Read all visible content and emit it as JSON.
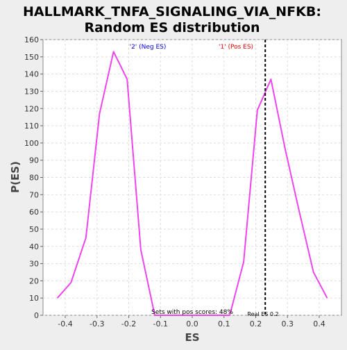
{
  "chart_data": {
    "type": "line",
    "title_line1": "HALLMARK_TNFA_SIGNALING_VIA_NFKB:",
    "title_line2": "Random ES distribution",
    "xlabel": "ES",
    "ylabel": "P(ES)",
    "xlim": [
      -0.47,
      0.47
    ],
    "ylim": [
      0,
      160
    ],
    "x_ticks": [
      -0.4,
      -0.3,
      -0.2,
      -0.1,
      0.0,
      0.1,
      0.2,
      0.3,
      0.4
    ],
    "x_tick_labels": [
      "-0.4",
      "-0.3",
      "-0.2",
      "-0.1",
      "0.0",
      "0.1",
      "0.2",
      "0.3",
      "0.4"
    ],
    "y_ticks": [
      0,
      10,
      20,
      30,
      40,
      50,
      60,
      70,
      80,
      90,
      100,
      110,
      120,
      130,
      140,
      150,
      160
    ],
    "grid": true,
    "series": [
      {
        "color": "#ee44ee",
        "x": [
          -0.425,
          -0.382,
          -0.335,
          -0.292,
          -0.248,
          -0.205,
          -0.162,
          -0.118,
          0.0,
          0.118,
          0.162,
          0.205,
          0.248,
          0.292,
          0.335,
          0.382,
          0.425
        ],
        "y": [
          10,
          19,
          45,
          117,
          153,
          137,
          38,
          0,
          0,
          0,
          31,
          119,
          137,
          97,
          62,
          25,
          10
        ]
      }
    ],
    "real_es": {
      "value": 0.23,
      "color": "#000000",
      "label": "Real ES 0.2"
    },
    "annotations": {
      "neg_label": "'2' (Neg ES)",
      "neg_color": "#0000ee",
      "pos_label": "'1' (Pos ES)",
      "pos_color": "#ee0000",
      "sets_text": "Sets with pos scores: 48%"
    },
    "colors": {
      "background": "#eeeeee",
      "plot_background": "#ffffff",
      "grid": "#dddddd",
      "axis": "#888888"
    }
  }
}
